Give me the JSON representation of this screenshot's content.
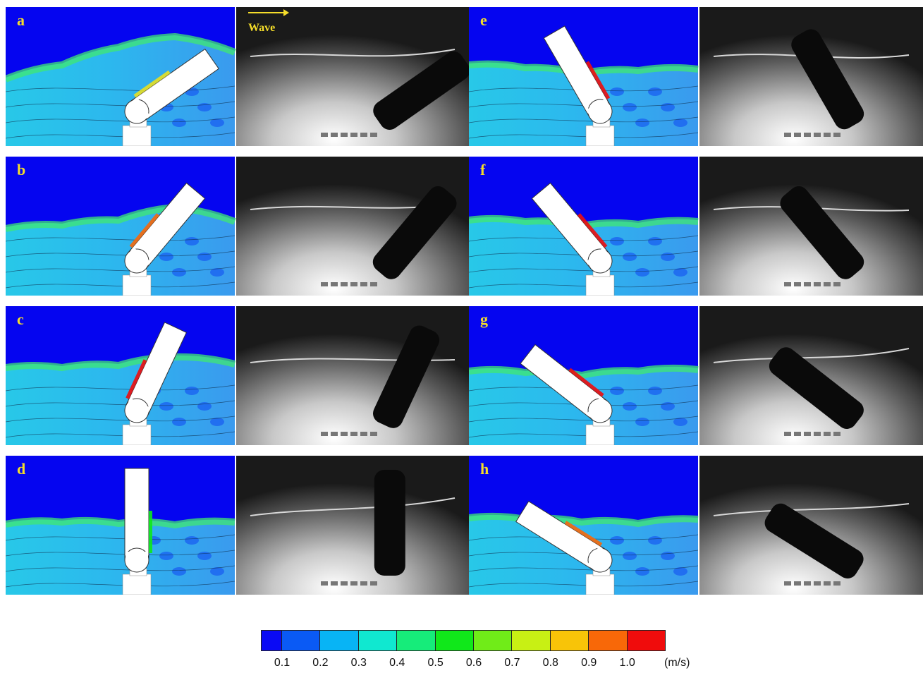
{
  "panels": [
    {
      "label": "a"
    },
    {
      "label": "b"
    },
    {
      "label": "c"
    },
    {
      "label": "d"
    },
    {
      "label": "e"
    },
    {
      "label": "f"
    },
    {
      "label": "g"
    },
    {
      "label": "h"
    }
  ],
  "wave_label": "Wave",
  "colorbar": {
    "ticks": [
      "0.1",
      "0.2",
      "0.3",
      "0.4",
      "0.5",
      "0.6",
      "0.7",
      "0.8",
      "0.9",
      "1.0"
    ],
    "unit": "(m/s)",
    "colors": [
      "#0a0af5",
      "#0a5af5",
      "#08b4f5",
      "#10e8d0",
      "#16ec7a",
      "#10e81a",
      "#70ec18",
      "#c8f014",
      "#f8c408",
      "#f86808",
      "#f00c0c"
    ]
  },
  "colors": {
    "air": "#0505f0",
    "water_light": "#2cb8ee",
    "water_mid": "#3a9aee",
    "label": "#f5dd2a"
  }
}
